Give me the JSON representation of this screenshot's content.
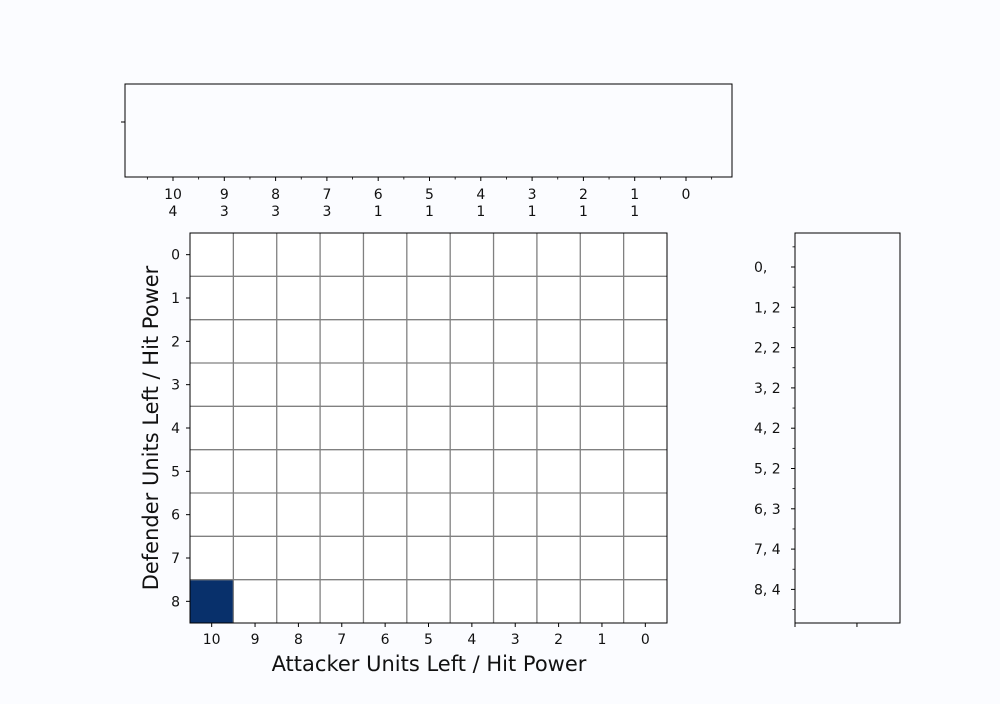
{
  "chart_data": [
    {
      "type": "bar",
      "panel": "top-marginal",
      "x_tick_labels": [
        [
          "10",
          "4"
        ],
        [
          "9",
          "3"
        ],
        [
          "8",
          "3"
        ],
        [
          "7",
          "3"
        ],
        [
          "6",
          "1"
        ],
        [
          "5",
          "1"
        ],
        [
          "4",
          "1"
        ],
        [
          "3",
          "1"
        ],
        [
          "2",
          "1"
        ],
        [
          "1",
          "1"
        ],
        [
          "0",
          ""
        ]
      ],
      "values": []
    },
    {
      "type": "heatmap",
      "panel": "main",
      "xlabel": "Attacker Units Left / Hit Power",
      "ylabel": "Defender Units Left / Hit Power",
      "x_categories": [
        "10",
        "9",
        "8",
        "7",
        "6",
        "5",
        "4",
        "3",
        "2",
        "1",
        "0"
      ],
      "y_categories": [
        "0",
        "1",
        "2",
        "3",
        "4",
        "5",
        "6",
        "7",
        "8"
      ],
      "grid": true,
      "cells": [
        {
          "x": "10",
          "y": "8",
          "value": 1.0,
          "color": "#08306b"
        }
      ],
      "empty_cell_color": "#ffffff",
      "grid_color": "#808080"
    },
    {
      "type": "bar",
      "panel": "right-marginal",
      "orientation": "horizontal",
      "y_tick_labels": [
        "0,",
        "1, 2",
        "2, 2",
        "3, 2",
        "4, 2",
        "5, 2",
        "6, 3",
        "7, 4",
        "8, 4"
      ],
      "values": []
    }
  ]
}
